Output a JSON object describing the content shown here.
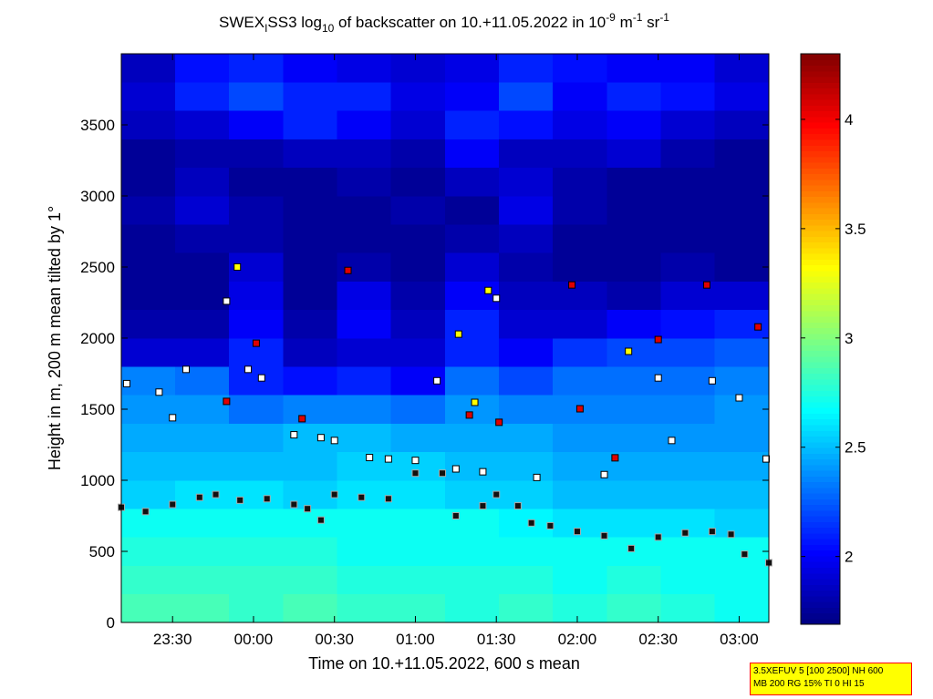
{
  "chart_data": {
    "type": "heatmap",
    "title_parts": [
      "SWEX",
      "I",
      "SS3 log",
      "10",
      " of backscatter on 10.+11.05.2022 in 10",
      "-9",
      " m",
      "-1",
      " sr",
      "-1"
    ],
    "x_label": "Time on 10.+11.05.2022, 600 s mean",
    "y_label": "Height in m, 200 m mean tilted by 1°",
    "xlim": [
      11,
      251
    ],
    "xticks": [
      {
        "value": 30,
        "label": "23:30"
      },
      {
        "value": 60,
        "label": "00:00"
      },
      {
        "value": 90,
        "label": "00:30"
      },
      {
        "value": 120,
        "label": "01:00"
      },
      {
        "value": 150,
        "label": "01:30"
      },
      {
        "value": 180,
        "label": "02:00"
      },
      {
        "value": 210,
        "label": "02:30"
      },
      {
        "value": 240,
        "label": "03:00"
      }
    ],
    "ylim": [
      0,
      4000
    ],
    "yticks": [
      0,
      500,
      1000,
      1500,
      2000,
      2500,
      3000,
      3500
    ],
    "colormap": "jet",
    "clim": [
      1.69,
      4.3
    ],
    "cticks": [
      2,
      2.5,
      3,
      3.5,
      4
    ],
    "heatmap": {
      "x_edges": [
        11,
        31,
        51,
        71,
        91,
        111,
        131,
        151,
        171,
        191,
        211,
        231,
        251
      ],
      "y_edges": [
        0,
        200,
        400,
        600,
        800,
        1000,
        1200,
        1400,
        1600,
        1800,
        2000,
        2200,
        2400,
        2600,
        2800,
        3000,
        3200,
        3400,
        3600,
        3800,
        4000
      ],
      "values": [
        [
          2.85,
          2.85,
          2.8,
          2.85,
          2.8,
          2.8,
          2.75,
          2.8,
          2.75,
          2.8,
          2.75,
          2.7
        ],
        [
          2.8,
          2.8,
          2.8,
          2.8,
          2.75,
          2.75,
          2.75,
          2.75,
          2.7,
          2.75,
          2.7,
          2.7
        ],
        [
          2.75,
          2.75,
          2.75,
          2.75,
          2.7,
          2.7,
          2.7,
          2.7,
          2.7,
          2.7,
          2.7,
          2.7
        ],
        [
          2.7,
          2.7,
          2.7,
          2.7,
          2.7,
          2.7,
          2.7,
          2.65,
          2.6,
          2.6,
          2.6,
          2.55
        ],
        [
          2.55,
          2.6,
          2.6,
          2.55,
          2.6,
          2.6,
          2.55,
          2.55,
          2.5,
          2.5,
          2.5,
          2.5
        ],
        [
          2.5,
          2.5,
          2.5,
          2.5,
          2.55,
          2.55,
          2.5,
          2.5,
          2.45,
          2.45,
          2.45,
          2.45
        ],
        [
          2.45,
          2.45,
          2.45,
          2.5,
          2.5,
          2.45,
          2.45,
          2.45,
          2.4,
          2.4,
          2.4,
          2.4
        ],
        [
          2.4,
          2.4,
          2.3,
          2.35,
          2.35,
          2.3,
          2.4,
          2.35,
          2.35,
          2.35,
          2.35,
          2.4
        ],
        [
          2.35,
          2.3,
          2.1,
          2.05,
          2.1,
          2.0,
          2.3,
          2.2,
          2.3,
          2.3,
          2.3,
          2.35
        ],
        [
          1.9,
          1.9,
          2.1,
          1.85,
          1.9,
          1.9,
          2.1,
          2.0,
          2.15,
          2.2,
          2.2,
          2.25
        ],
        [
          1.8,
          1.8,
          2.0,
          1.8,
          2.0,
          1.85,
          2.1,
          1.9,
          1.9,
          2.0,
          2.05,
          2.1
        ],
        [
          1.75,
          1.75,
          1.95,
          1.75,
          1.95,
          1.8,
          2.0,
          1.85,
          1.85,
          1.8,
          1.9,
          1.9
        ],
        [
          1.75,
          1.75,
          1.9,
          1.75,
          1.8,
          1.75,
          1.9,
          1.8,
          1.75,
          1.75,
          1.8,
          1.75
        ],
        [
          1.75,
          1.8,
          1.8,
          1.75,
          1.75,
          1.75,
          1.8,
          1.85,
          1.75,
          1.75,
          1.75,
          1.75
        ],
        [
          1.8,
          1.9,
          1.8,
          1.75,
          1.75,
          1.8,
          1.75,
          1.95,
          1.8,
          1.75,
          1.75,
          1.75
        ],
        [
          1.75,
          1.85,
          1.75,
          1.75,
          1.8,
          1.75,
          1.85,
          1.9,
          1.8,
          1.75,
          1.75,
          1.75
        ],
        [
          1.75,
          1.8,
          1.8,
          1.85,
          1.85,
          1.8,
          2.0,
          1.85,
          1.85,
          1.9,
          1.8,
          1.75
        ],
        [
          1.85,
          1.9,
          2.0,
          2.1,
          2.0,
          1.9,
          2.1,
          2.05,
          1.95,
          2.0,
          1.9,
          1.85
        ],
        [
          1.9,
          2.1,
          2.2,
          2.1,
          2.1,
          1.95,
          2.0,
          2.2,
          2.0,
          2.1,
          2.05,
          1.95
        ],
        [
          1.85,
          2.05,
          2.1,
          2.0,
          1.95,
          1.9,
          1.95,
          2.1,
          2.05,
          2.0,
          2.0,
          1.9
        ]
      ]
    },
    "series": [
      {
        "color": "#111111",
        "edge": "#aaaaaa",
        "x": [
          11,
          20,
          30,
          40,
          46,
          55,
          65,
          75,
          80,
          85,
          90,
          100,
          110,
          120,
          130,
          135,
          145,
          150,
          158,
          163,
          170,
          180,
          190,
          200,
          210,
          220,
          230,
          237,
          242,
          251
        ],
        "values": [
          810,
          780,
          830,
          880,
          900,
          860,
          870,
          830,
          800,
          720,
          900,
          880,
          870,
          1050,
          1050,
          750,
          820,
          900,
          820,
          700,
          680,
          640,
          610,
          520,
          600,
          630,
          640,
          620,
          480,
          420
        ]
      },
      {
        "color": "#ffffff",
        "edge": "#000000",
        "x": [
          13,
          25,
          30,
          35,
          50,
          58,
          63,
          75,
          85,
          90,
          103,
          110,
          120,
          128,
          135,
          145,
          150,
          165,
          190,
          210,
          215,
          230,
          240,
          250
        ],
        "values": [
          1680,
          1620,
          1440,
          1780,
          2260,
          1780,
          1720,
          1320,
          1300,
          1280,
          1160,
          1150,
          1140,
          1700,
          1080,
          1060,
          2280,
          1020,
          1040,
          1720,
          1280,
          1700,
          1580,
          1150
        ]
      },
      {
        "color": "#e00000",
        "edge": "#000000",
        "x": [
          61,
          50,
          78,
          95,
          140,
          151,
          178,
          194,
          181,
          228,
          247,
          210
        ],
        "values": [
          1964,
          1555,
          1433,
          2476,
          1459,
          1408,
          2374,
          1158,
          1503,
          2374,
          2079,
          1990
        ]
      },
      {
        "color": "#ffff00",
        "edge": "#000000",
        "x": [
          54,
          136,
          142,
          147,
          199
        ],
        "values": [
          2500,
          2028,
          1548,
          2335,
          1907
        ]
      }
    ],
    "info": [
      "3.5XEFUV 5 [100 2500] NH 600",
      "MB 200 RG 15% TI 0 HI 15"
    ]
  }
}
